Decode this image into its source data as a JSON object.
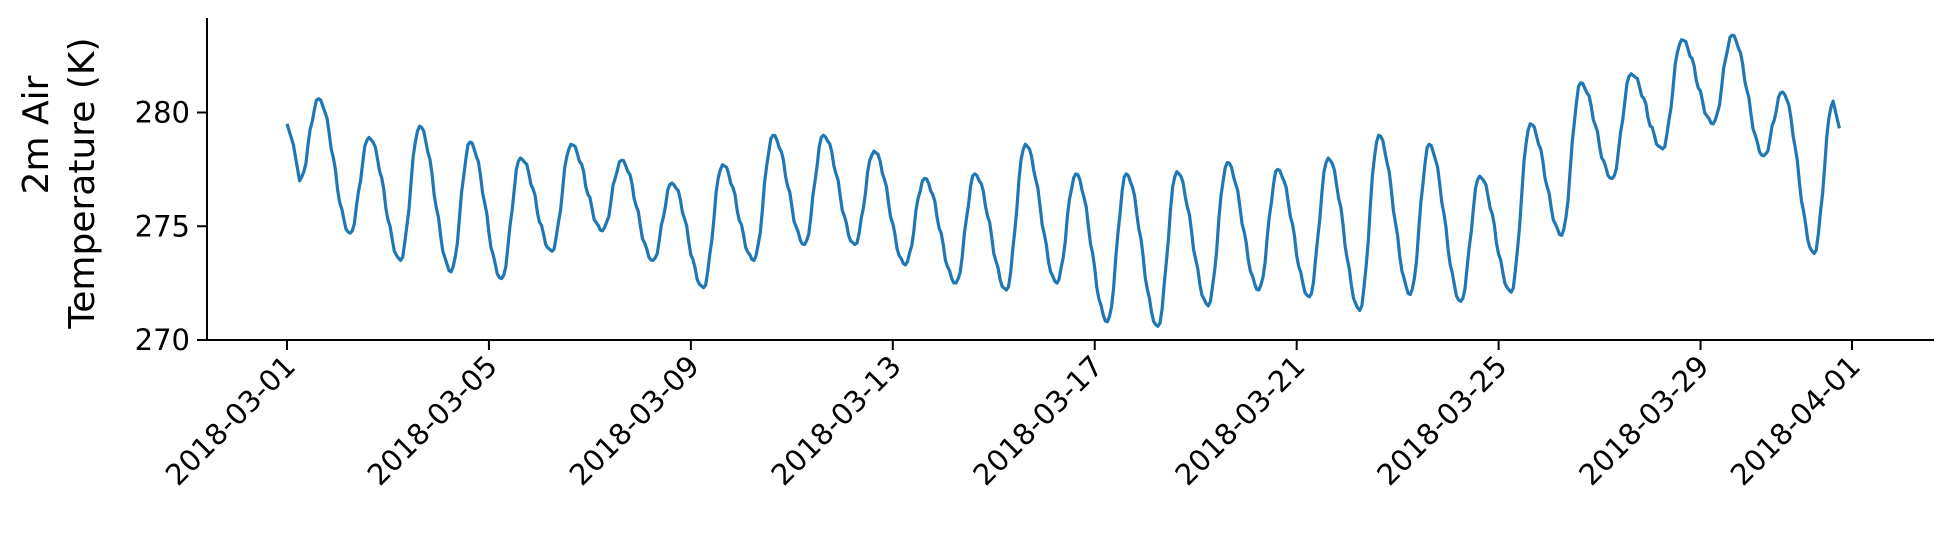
{
  "chart_data": {
    "type": "line",
    "title": "",
    "xlabel": "",
    "ylabel_lines": [
      "2m Air",
      "Temperature (K)"
    ],
    "x_start": "2018-03-01T00:00",
    "x_end": "2018-04-01T00:00",
    "x_ticks": [
      "2018-03-01",
      "2018-03-05",
      "2018-03-09",
      "2018-03-13",
      "2018-03-17",
      "2018-03-21",
      "2018-03-25",
      "2018-03-29",
      "2018-04-01"
    ],
    "y_ticks": [
      270,
      275,
      280
    ],
    "ylim": [
      270,
      284.5
    ],
    "grid": false,
    "line_color": "#1f77b4",
    "daily_extrema": [
      {
        "date": "2018-03-01",
        "min": 277.0,
        "max": 280.6
      },
      {
        "date": "2018-03-02",
        "min": 274.7,
        "max": 278.9
      },
      {
        "date": "2018-03-03",
        "min": 273.5,
        "max": 279.4
      },
      {
        "date": "2018-03-04",
        "min": 273.0,
        "max": 278.7
      },
      {
        "date": "2018-03-05",
        "min": 272.7,
        "max": 278.0
      },
      {
        "date": "2018-03-06",
        "min": 273.9,
        "max": 278.6
      },
      {
        "date": "2018-03-07",
        "min": 274.8,
        "max": 277.9
      },
      {
        "date": "2018-03-08",
        "min": 273.5,
        "max": 276.9
      },
      {
        "date": "2018-03-09",
        "min": 272.3,
        "max": 277.7
      },
      {
        "date": "2018-03-10",
        "min": 273.5,
        "max": 279.0
      },
      {
        "date": "2018-03-11",
        "min": 274.2,
        "max": 279.0
      },
      {
        "date": "2018-03-12",
        "min": 274.2,
        "max": 278.3
      },
      {
        "date": "2018-03-13",
        "min": 273.3,
        "max": 277.1
      },
      {
        "date": "2018-03-14",
        "min": 272.5,
        "max": 277.3
      },
      {
        "date": "2018-03-15",
        "min": 272.2,
        "max": 278.6
      },
      {
        "date": "2018-03-16",
        "min": 272.5,
        "max": 277.3
      },
      {
        "date": "2018-03-17",
        "min": 270.8,
        "max": 277.3
      },
      {
        "date": "2018-03-18",
        "min": 270.6,
        "max": 277.4
      },
      {
        "date": "2018-03-19",
        "min": 271.5,
        "max": 277.8
      },
      {
        "date": "2018-03-20",
        "min": 272.2,
        "max": 277.5
      },
      {
        "date": "2018-03-21",
        "min": 271.9,
        "max": 278.0
      },
      {
        "date": "2018-03-22",
        "min": 271.3,
        "max": 279.0
      },
      {
        "date": "2018-03-23",
        "min": 272.0,
        "max": 278.6
      },
      {
        "date": "2018-03-24",
        "min": 271.7,
        "max": 277.2
      },
      {
        "date": "2018-03-25",
        "min": 272.1,
        "max": 279.5
      },
      {
        "date": "2018-03-26",
        "min": 274.6,
        "max": 281.3
      },
      {
        "date": "2018-03-27",
        "min": 277.1,
        "max": 281.7
      },
      {
        "date": "2018-03-28",
        "min": 278.4,
        "max": 283.2
      },
      {
        "date": "2018-03-29",
        "min": 279.5,
        "max": 283.4
      },
      {
        "date": "2018-03-30",
        "min": 278.1,
        "max": 280.9
      },
      {
        "date": "2018-03-31",
        "min": 273.8,
        "max": 280.5
      }
    ]
  }
}
